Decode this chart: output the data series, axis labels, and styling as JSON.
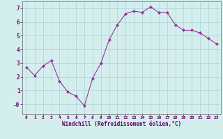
{
  "x": [
    0,
    1,
    2,
    3,
    4,
    5,
    6,
    7,
    8,
    9,
    10,
    11,
    12,
    13,
    14,
    15,
    16,
    17,
    18,
    19,
    20,
    21,
    22,
    23
  ],
  "y": [
    2.7,
    2.1,
    2.8,
    3.2,
    1.7,
    0.9,
    0.6,
    -0.1,
    1.9,
    3.0,
    4.7,
    5.8,
    6.6,
    6.8,
    6.7,
    7.1,
    6.7,
    6.7,
    5.8,
    5.4,
    5.4,
    5.2,
    4.8,
    4.4
  ],
  "line_color": "#993399",
  "marker": "D",
  "marker_size": 2.0,
  "line_width": 0.8,
  "bg_color": "#d4eeee",
  "grid_color": "#b0d8d8",
  "xlabel": "Windchill (Refroidissement éolien,°C)",
  "xlim": [
    -0.5,
    23.5
  ],
  "ylim": [
    -0.7,
    7.5
  ],
  "xticks": [
    0,
    1,
    2,
    3,
    4,
    5,
    6,
    7,
    8,
    9,
    10,
    11,
    12,
    13,
    14,
    15,
    16,
    17,
    18,
    19,
    20,
    21,
    22,
    23
  ],
  "yticks": [
    0,
    1,
    2,
    3,
    4,
    5,
    6,
    7
  ],
  "tick_color": "#660066",
  "label_color": "#660066"
}
